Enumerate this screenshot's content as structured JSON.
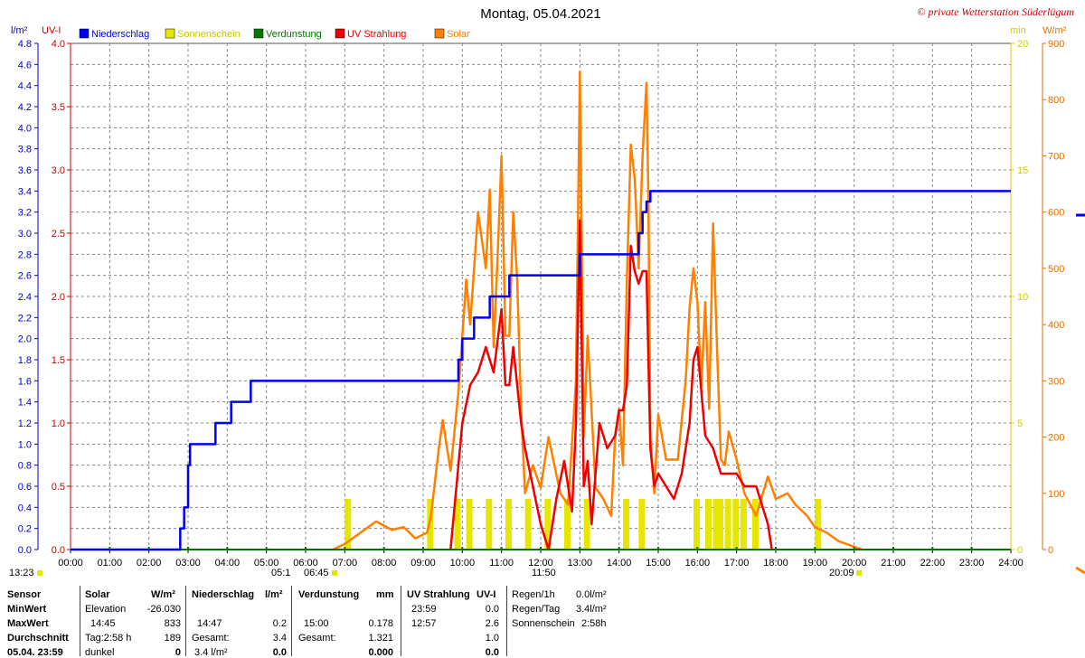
{
  "chart_data": {
    "type": "line",
    "title": "Montag, 05.04.2021",
    "copyright": "© private Wetterstation Süderlügum",
    "left_axis_1": {
      "unit": "l/m²",
      "min": 0.0,
      "max": 4.8,
      "ticks": [
        "0.0",
        "0.2",
        "0.4",
        "0.6",
        "0.8",
        "1.0",
        "1.2",
        "1.4",
        "1.6",
        "1.8",
        "2.0",
        "2.2",
        "2.4",
        "2.6",
        "2.8",
        "3.0",
        "3.2",
        "3.4",
        "3.6",
        "3.8",
        "4.0",
        "4.2",
        "4.4",
        "4.6",
        "4.8"
      ],
      "color": "#0000cc"
    },
    "left_axis_2": {
      "unit": "UV-I",
      "min": 0.0,
      "max": 4.0,
      "ticks": [
        "0.0",
        "0.5",
        "1.0",
        "1.5",
        "2.0",
        "2.5",
        "3.0",
        "3.5",
        "4.0"
      ],
      "color": "#cc0000"
    },
    "right_axis_1": {
      "unit": "min",
      "min": 0,
      "max": 20,
      "ticks": [
        "0",
        "5",
        "10",
        "15",
        "20"
      ],
      "color": "#cccc00"
    },
    "right_axis_2": {
      "unit": "W/m²",
      "min": 0,
      "max": 900,
      "ticks": [
        "0",
        "100",
        "200",
        "300",
        "400",
        "500",
        "600",
        "700",
        "800",
        "900"
      ],
      "color": "#e07000"
    },
    "x_ticks": [
      "00:00",
      "01:00",
      "02:00",
      "03:00",
      "04:00",
      "05:00",
      "06:00",
      "07:00",
      "08:00",
      "09:00",
      "10:00",
      "11:00",
      "12:00",
      "13:00",
      "14:00",
      "15:00",
      "16:00",
      "17:00",
      "18:00",
      "19:00",
      "20:00",
      "21:00",
      "22:00",
      "23:00",
      "24:00"
    ],
    "x_range_hours": [
      0,
      24
    ],
    "grid": true,
    "legend_position": "top",
    "legend": [
      {
        "name": "Niederschlag",
        "color": "#0000ee"
      },
      {
        "name": "Sonnenschein",
        "color": "#e6e600"
      },
      {
        "name": "Verdunstung",
        "color": "#007700"
      },
      {
        "name": "UV Strahlung",
        "color": "#ee0000"
      },
      {
        "name": "Solar",
        "color": "#ff8000"
      }
    ],
    "bottom_marks": {
      "left_time": "13:23",
      "sunrise": "05:1",
      "sunrise2": "06:45",
      "noon": "11:50",
      "sunset": "20:09"
    },
    "series": [
      {
        "name": "Niederschlag",
        "axis": "left_axis_1",
        "x": [
          0,
          2.7,
          2.8,
          2.9,
          3.0,
          3.05,
          3.4,
          3.7,
          4.1,
          4.6,
          9.9,
          10.0,
          10.3,
          10.7,
          11.2,
          13.0,
          14.5,
          14.6,
          14.7,
          14.8,
          24
        ],
        "y": [
          0,
          0,
          0.2,
          0.4,
          0.8,
          1.0,
          1.0,
          1.2,
          1.4,
          1.6,
          1.8,
          2.0,
          2.2,
          2.4,
          2.6,
          2.8,
          3.0,
          3.2,
          3.3,
          3.4,
          3.4
        ]
      },
      {
        "name": "Solar",
        "axis": "right_axis_2",
        "x": [
          6.7,
          7.0,
          7.4,
          7.8,
          8.2,
          8.5,
          8.8,
          9.1,
          9.2,
          9.4,
          9.5,
          9.7,
          9.9,
          10.1,
          10.2,
          10.4,
          10.6,
          10.7,
          10.8,
          10.9,
          11.0,
          11.1,
          11.2,
          11.3,
          11.4,
          11.5,
          11.6,
          11.8,
          12.0,
          12.2,
          12.5,
          12.7,
          12.9,
          13.0,
          13.1,
          13.2,
          13.4,
          13.6,
          13.8,
          13.9,
          14.0,
          14.1,
          14.2,
          14.3,
          14.4,
          14.5,
          14.6,
          14.7,
          14.75,
          14.8,
          14.9,
          15.0,
          15.2,
          15.5,
          15.7,
          15.8,
          15.9,
          16.0,
          16.1,
          16.2,
          16.3,
          16.4,
          16.5,
          16.6,
          16.7,
          16.8,
          17.0,
          17.2,
          17.5,
          17.8,
          18.0,
          18.3,
          18.5,
          18.8,
          19.0,
          19.3,
          19.6,
          20.0,
          20.2
        ],
        "y": [
          0,
          10,
          30,
          50,
          35,
          40,
          20,
          30,
          60,
          180,
          230,
          140,
          280,
          480,
          400,
          600,
          500,
          640,
          360,
          520,
          700,
          380,
          380,
          600,
          480,
          250,
          100,
          150,
          110,
          200,
          100,
          80,
          300,
          850,
          200,
          380,
          110,
          90,
          60,
          200,
          250,
          150,
          480,
          720,
          660,
          500,
          700,
          830,
          620,
          200,
          100,
          240,
          160,
          160,
          300,
          430,
          500,
          440,
          290,
          440,
          250,
          580,
          360,
          160,
          150,
          210,
          160,
          100,
          60,
          130,
          90,
          100,
          80,
          60,
          40,
          30,
          15,
          5,
          0
        ]
      },
      {
        "name": "UV Strahlung",
        "axis": "left_axis_2",
        "x": [
          9.7,
          10.0,
          10.2,
          10.4,
          10.6,
          10.8,
          11.0,
          11.1,
          11.2,
          11.3,
          11.4,
          11.5,
          11.6,
          11.8,
          12.0,
          12.2,
          12.4,
          12.6,
          12.8,
          12.9,
          13.0,
          13.1,
          13.2,
          13.3,
          13.5,
          13.7,
          13.9,
          14.0,
          14.1,
          14.2,
          14.3,
          14.4,
          14.5,
          14.6,
          14.7,
          14.8,
          14.9,
          15.0,
          15.2,
          15.4,
          15.6,
          15.8,
          15.9,
          16.0,
          16.2,
          16.4,
          16.6,
          16.8,
          17.0,
          17.2,
          17.5,
          17.8,
          17.9
        ],
        "y": [
          0,
          1.0,
          1.3,
          1.4,
          1.6,
          1.4,
          1.9,
          1.3,
          1.3,
          1.6,
          1.3,
          1.0,
          0.8,
          0.5,
          0.2,
          0.0,
          0.4,
          0.7,
          0.3,
          1.0,
          2.6,
          0.5,
          0.7,
          0.2,
          1.0,
          0.8,
          0.9,
          1.1,
          1.1,
          1.3,
          2.4,
          2.2,
          2.1,
          2.2,
          2.2,
          0.8,
          0.5,
          0.6,
          0.5,
          0.4,
          0.6,
          1.0,
          1.5,
          1.6,
          0.9,
          0.8,
          0.6,
          0.6,
          0.6,
          0.5,
          0.5,
          0.2,
          0.0
        ]
      },
      {
        "name": "Sonnenschein",
        "axis": "right_axis_1",
        "x": [
          7.0,
          9.1,
          9.8,
          10.1,
          10.6,
          11.1,
          11.6,
          12.1,
          12.6,
          13.1,
          14.1,
          14.5,
          15.9,
          16.2,
          16.4,
          16.5,
          16.7,
          16.9,
          17.1,
          17.4,
          19.0
        ],
        "y": [
          1,
          1,
          1,
          1,
          1,
          1,
          1,
          1,
          1,
          1,
          1,
          1,
          1,
          1,
          1,
          1,
          1,
          1,
          1,
          1,
          1
        ]
      },
      {
        "name": "Verdunstung",
        "axis": "left_axis_1",
        "x": [
          0,
          24
        ],
        "y": [
          0,
          0
        ]
      }
    ]
  },
  "stats": {
    "headers": {
      "sensor": "Sensor",
      "solar": "Solar",
      "solar_unit": "W/m²",
      "rain": "Niederschlag",
      "rain_unit": "l/m²",
      "evap": "Verdunstung",
      "evap_unit": "mm",
      "uv": "UV Strahlung",
      "uv_unit": "UV-I"
    },
    "row_labels": [
      "MinWert",
      "MaxWert",
      "Durchschnitt",
      "05.04. 23:59"
    ],
    "solar": {
      "min_label": "Elevation",
      "min_value": "-26.030",
      "max_time": "14:45",
      "max_value": "833",
      "avg_label": "Tag:2:58 h",
      "avg_value": "189",
      "now_label": "dunkel",
      "now_value": "0"
    },
    "rain": {
      "max_time": "14:47",
      "max_value": "0.2",
      "sum_label": "Gesamt:",
      "sum_value": "3.4",
      "now_label": "3.4 l/m²",
      "now_value": "0.0"
    },
    "evap": {
      "max_time": "15:00",
      "max_value": "0.178",
      "sum_label": "Gesamt:",
      "sum_value": "1.321",
      "now_value": "0.000"
    },
    "uv": {
      "min_time": "23:59",
      "min_value": "0.0",
      "max_time": "12:57",
      "max_value": "2.6",
      "avg_value": "1.0",
      "now_value": "0.0"
    },
    "extra": {
      "rain_h_label": "Regen/1h",
      "rain_h_value": "0.0l/m²",
      "rain_day_label": "Regen/Tag",
      "rain_day_value": "3.4l/m²",
      "sun_label": "Sonnenschein",
      "sun_value": "2:58h"
    }
  }
}
